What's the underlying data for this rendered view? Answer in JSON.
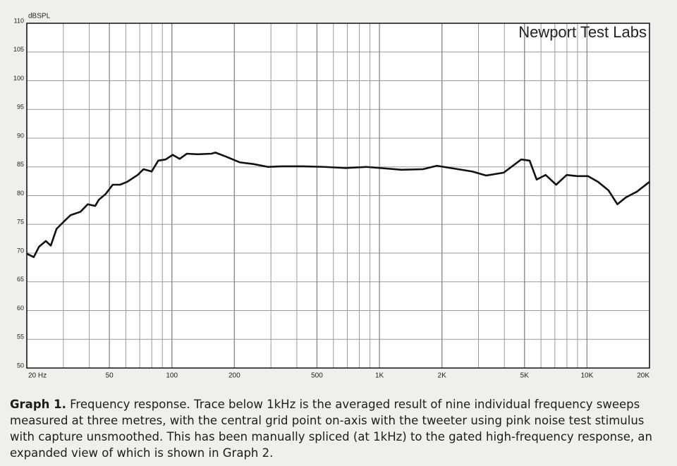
{
  "chart_data": {
    "type": "line",
    "y_label": "dBSPL",
    "annotation": "Newport Test Labs",
    "x_log": true,
    "grid": true,
    "xlim": [
      20,
      20000
    ],
    "ylim": [
      50,
      110
    ],
    "xticks": [
      {
        "value": 20,
        "label": "20 Hz"
      },
      50,
      100,
      200,
      500,
      {
        "value": 1000,
        "label": "1K"
      },
      {
        "value": 2000,
        "label": "2K"
      },
      {
        "value": 5000,
        "label": "5K"
      },
      {
        "value": 10000,
        "label": "10K"
      },
      {
        "value": 20000,
        "label": "20K"
      }
    ],
    "yticks": [
      50,
      55,
      60,
      65,
      70,
      75,
      80,
      85,
      90,
      95,
      100,
      105,
      110
    ],
    "series": [
      {
        "color": "#111111",
        "x": [
          20,
          21.6,
          22.9,
          24.7,
          26.1,
          27.8,
          30,
          32.5,
          36.3,
          39.3,
          42.7,
          44.5,
          48,
          51.9,
          56.3,
          60.9,
          68.4,
          73,
          79.9,
          86,
          93.3,
          101,
          109,
          118,
          133,
          155,
          162,
          182,
          212,
          247,
          291,
          338,
          428,
          544,
          688,
          866,
          1012,
          1280,
          1620,
          1890,
          2210,
          2800,
          3270,
          3970,
          4820,
          5290,
          5720,
          6320,
          7100,
          7980,
          8970,
          10100,
          11300,
          12700,
          14000,
          15400,
          17400,
          20000
        ],
        "values": [
          69.9,
          69.3,
          71.1,
          72.1,
          71.3,
          74.2,
          75.4,
          76.6,
          77.2,
          78.5,
          78.2,
          79.3,
          80.3,
          81.9,
          81.9,
          82.4,
          83.6,
          84.6,
          84.2,
          86.1,
          86.3,
          87.1,
          86.4,
          87.3,
          87.2,
          87.3,
          87.5,
          86.8,
          85.8,
          85.5,
          85.0,
          85.1,
          85.1,
          85.0,
          84.8,
          85.0,
          84.8,
          84.5,
          84.6,
          85.2,
          84.8,
          84.2,
          83.5,
          84.0,
          86.3,
          86.1,
          82.8,
          83.6,
          81.9,
          83.6,
          83.4,
          83.4,
          82.4,
          80.9,
          78.5,
          79.7,
          80.7,
          82.4
        ]
      }
    ]
  },
  "caption": {
    "label": "Graph 1.",
    "text": "Frequency response. Trace below 1kHz is the averaged result of nine individual frequency sweeps measured at three metres, with the central grid point on-axis with the tweeter using pink noise test stimulus with capture unsmoothed. This has been manually spliced (at 1kHz) to the gated high-frequency response, an expanded view of which is shown in Graph 2."
  }
}
